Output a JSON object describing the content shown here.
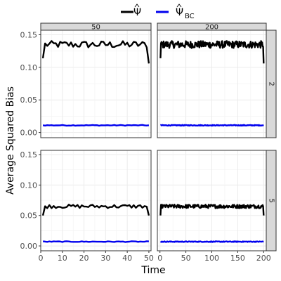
{
  "chart_data": {
    "type": "line",
    "ylabel": "Average Squared Bias",
    "xlabel": "Time",
    "legend": {
      "position": "top",
      "entries": [
        {
          "series": "psi_hat",
          "symbol": "Ψ",
          "subscript": "",
          "color": "#000000"
        },
        {
          "series": "psi_hat_bc",
          "symbol": "Ψ",
          "subscript": "BC",
          "color": "#0000ee"
        }
      ]
    },
    "grid": true,
    "facet_cols": [
      {
        "label": "50",
        "xlim": [
          0,
          51
        ],
        "xticks": [
          "0",
          "10",
          "20",
          "30",
          "40",
          "50"
        ],
        "tmax": 50
      },
      {
        "label": "200",
        "xlim": [
          -5,
          205
        ],
        "xticks": [
          "0",
          "50",
          "100",
          "150",
          "200"
        ],
        "tmax": 200
      }
    ],
    "facet_rows": [
      {
        "label": "2",
        "ylim": [
          -0.008,
          0.157
        ],
        "yticks": [
          "0.00",
          "0.05",
          "0.10",
          "0.15"
        ],
        "psi_hat_level": 0.135,
        "psi_hat_start": 0.114,
        "psi_hat_end": 0.106,
        "psi_hat_bc_level": 0.011
      },
      {
        "label": "5",
        "ylim": [
          -0.008,
          0.157
        ],
        "yticks": [
          "0.00",
          "0.05",
          "0.10",
          "0.15"
        ],
        "psi_hat_level": 0.065,
        "psi_hat_start": 0.05,
        "psi_hat_end": 0.05,
        "psi_hat_bc_level": 0.007
      }
    ]
  }
}
